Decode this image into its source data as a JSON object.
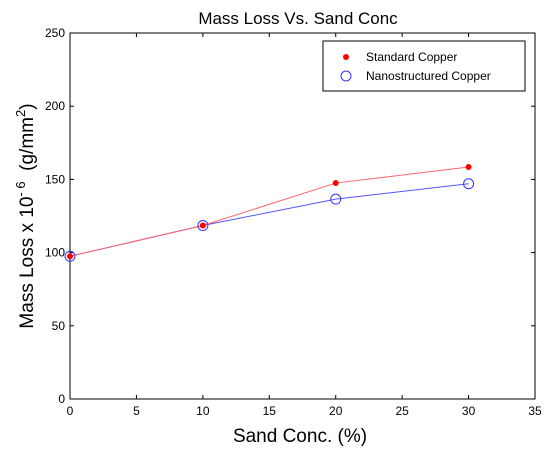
{
  "chart_data": {
    "type": "line",
    "title": "Mass Loss Vs. Sand Conc",
    "xlabel": "Sand Conc. (%)",
    "ylabel": {
      "prefix": "Mass Loss x 10",
      "exponent": "- 6",
      "unit_open": "  (g/mm",
      "unit_sup": "2",
      "unit_close": ")"
    },
    "xlim": [
      0,
      35
    ],
    "ylim": [
      0,
      250
    ],
    "x_ticks": [
      0,
      5,
      10,
      15,
      20,
      25,
      30,
      35
    ],
    "y_ticks": [
      0,
      50,
      100,
      150,
      200,
      250
    ],
    "grid": false,
    "legend_position": "top-right",
    "series": [
      {
        "name": "Standard Copper",
        "color": "#ff0000",
        "line_color": "#ff6666",
        "marker": "filled-dot",
        "x": [
          0,
          10,
          20,
          30
        ],
        "y": [
          97.5,
          118.5,
          147.5,
          158.5
        ]
      },
      {
        "name": "Nanostructured Copper",
        "color": "#3333ff",
        "line_color": "#5555ff",
        "marker": "open-circle",
        "x": [
          0,
          10,
          20,
          30
        ],
        "y": [
          97.5,
          118.5,
          136.5,
          147.0
        ]
      }
    ]
  }
}
